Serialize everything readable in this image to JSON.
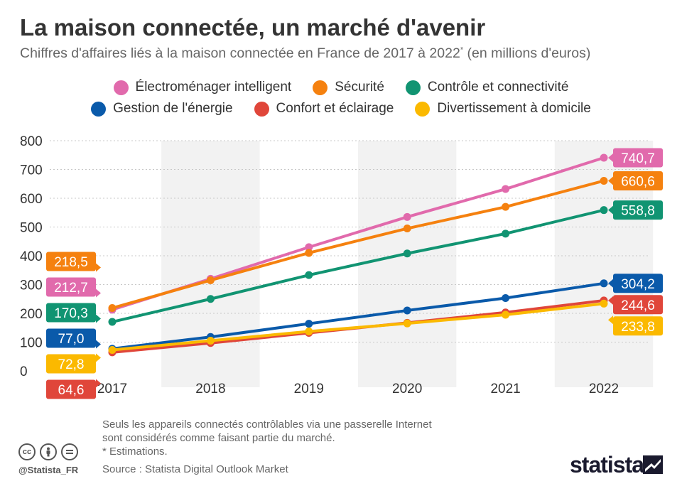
{
  "header": {
    "title": "La maison connectée, un marché d'avenir",
    "subtitle": "Chiffres d'affaires liés à la maison connectée en France de 2017 à 2022",
    "subtitle_mark": "*",
    "subtitle_suffix": " (en millions d'euros)"
  },
  "chart_data": {
    "type": "line",
    "x": [
      "2017",
      "2018",
      "2019",
      "2020",
      "2021",
      "2022"
    ],
    "ylim": [
      0,
      800
    ],
    "yticks": [
      "0",
      "100",
      "200",
      "300",
      "400",
      "500",
      "600",
      "700",
      "800"
    ],
    "legend_position": "top",
    "alternating_column_bands": true,
    "series": [
      {
        "name": "Électroménager intelligent",
        "color": "#e16aac",
        "values": [
          212.7,
          320,
          430,
          535,
          632,
          740.7
        ],
        "start_label": "212,7",
        "end_label": "740,7"
      },
      {
        "name": "Sécurité",
        "color": "#f5810f",
        "values": [
          218.5,
          315,
          410,
          495,
          570,
          660.6
        ],
        "start_label": "218,5",
        "end_label": "660,6"
      },
      {
        "name": "Contrôle et connectivité",
        "color": "#119472",
        "values": [
          170.3,
          250,
          333,
          408,
          477,
          558.8
        ],
        "start_label": "170,3",
        "end_label": "558,8"
      },
      {
        "name": "Gestion de l'énergie",
        "color": "#0a5aaa",
        "values": [
          77.0,
          118,
          164,
          210,
          253,
          304.2
        ],
        "start_label": "77,0",
        "end_label": "304,2"
      },
      {
        "name": "Confort et éclairage",
        "color": "#e0463a",
        "values": [
          64.6,
          97,
          132,
          167,
          203,
          244.6
        ],
        "start_label": "64,6",
        "end_label": "244,6"
      },
      {
        "name": "Divertissement à domicile",
        "color": "#fbb900",
        "values": [
          72.8,
          105,
          137,
          165,
          195,
          233.8
        ],
        "start_label": "72,8",
        "end_label": "233,8"
      }
    ]
  },
  "notes": [
    "Seuls les appareils connectés contrôlables via une passerelle Internet",
    "sont considérés comme faisant partie du marché.",
    "* Estimations."
  ],
  "source": "Source : Statista Digital Outlook Market",
  "footer": {
    "handle": "@Statista_FR",
    "brand": "statista",
    "license_icons": [
      "cc-icon",
      "by-icon",
      "nd-icon"
    ]
  }
}
